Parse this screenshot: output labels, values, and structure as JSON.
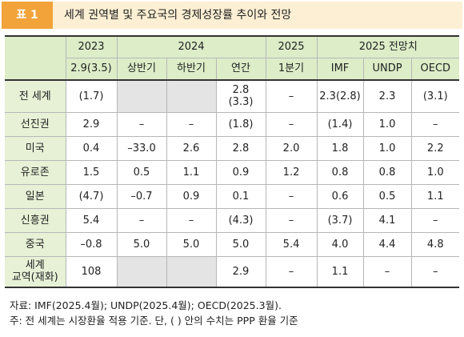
{
  "title": {
    "badge": "표 1",
    "text": "세계 권역별 및 주요국의 경제성장률 추이와 전망"
  },
  "header": {
    "groups": [
      "2023",
      "2024",
      "2025",
      "2025 전망치"
    ],
    "sub": [
      "2.9(3.5)",
      "상반기",
      "하반기",
      "연간",
      "1분기",
      "IMF",
      "UNDP",
      "OECD"
    ]
  },
  "rows": [
    {
      "label": "전 세계",
      "cells": [
        "(1.7)",
        "",
        "",
        "2.8\n(3.3)",
        "–",
        "2.3(2.8)",
        "2.3",
        "(3.1)"
      ]
    },
    {
      "label": "선진권",
      "cells": [
        "2.9",
        "–",
        "–",
        "(1.8)",
        "–",
        "(1.4)",
        "1.0",
        "–"
      ]
    },
    {
      "label": "미국",
      "cells": [
        "0.4",
        "–33.0",
        "2.6",
        "2.8",
        "2.0",
        "1.8",
        "1.0",
        "2.2"
      ]
    },
    {
      "label": "유로존",
      "cells": [
        "1.5",
        "0.5",
        "1.1",
        "0.9",
        "1.2",
        "0.8",
        "0.8",
        "1.0"
      ]
    },
    {
      "label": "일본",
      "cells": [
        "(4.7)",
        "–0.7",
        "0.9",
        "0.1",
        "–",
        "0.6",
        "0.5",
        "1.1"
      ]
    },
    {
      "label": "신흥권",
      "cells": [
        "5.4",
        "–",
        "–",
        "(4.3)",
        "–",
        "(3.7)",
        "4.1",
        "–"
      ]
    },
    {
      "label": "중국",
      "cells": [
        "–0.8",
        "5.0",
        "5.0",
        "5.0",
        "5.4",
        "4.0",
        "4.4",
        "4.8"
      ]
    },
    {
      "label": "세계\n교역(재화)",
      "cells": [
        "108",
        "",
        "",
        "2.9",
        "–",
        "1.1",
        "–",
        "–"
      ]
    }
  ],
  "notes": {
    "source": "자료: IMF(2025.4월); UNDP(2025.4월); OECD(2025.3월).",
    "note": "주: 전 세계는 시장환율 적용 기준. 단, (    ) 안의 수치는 PPP 환율 기준"
  },
  "colors": {
    "badge": "#f2a33a",
    "title_bg": "#fcefd3",
    "header_bg": "#dcedc8",
    "empty_cell": "#e4e4e4"
  }
}
